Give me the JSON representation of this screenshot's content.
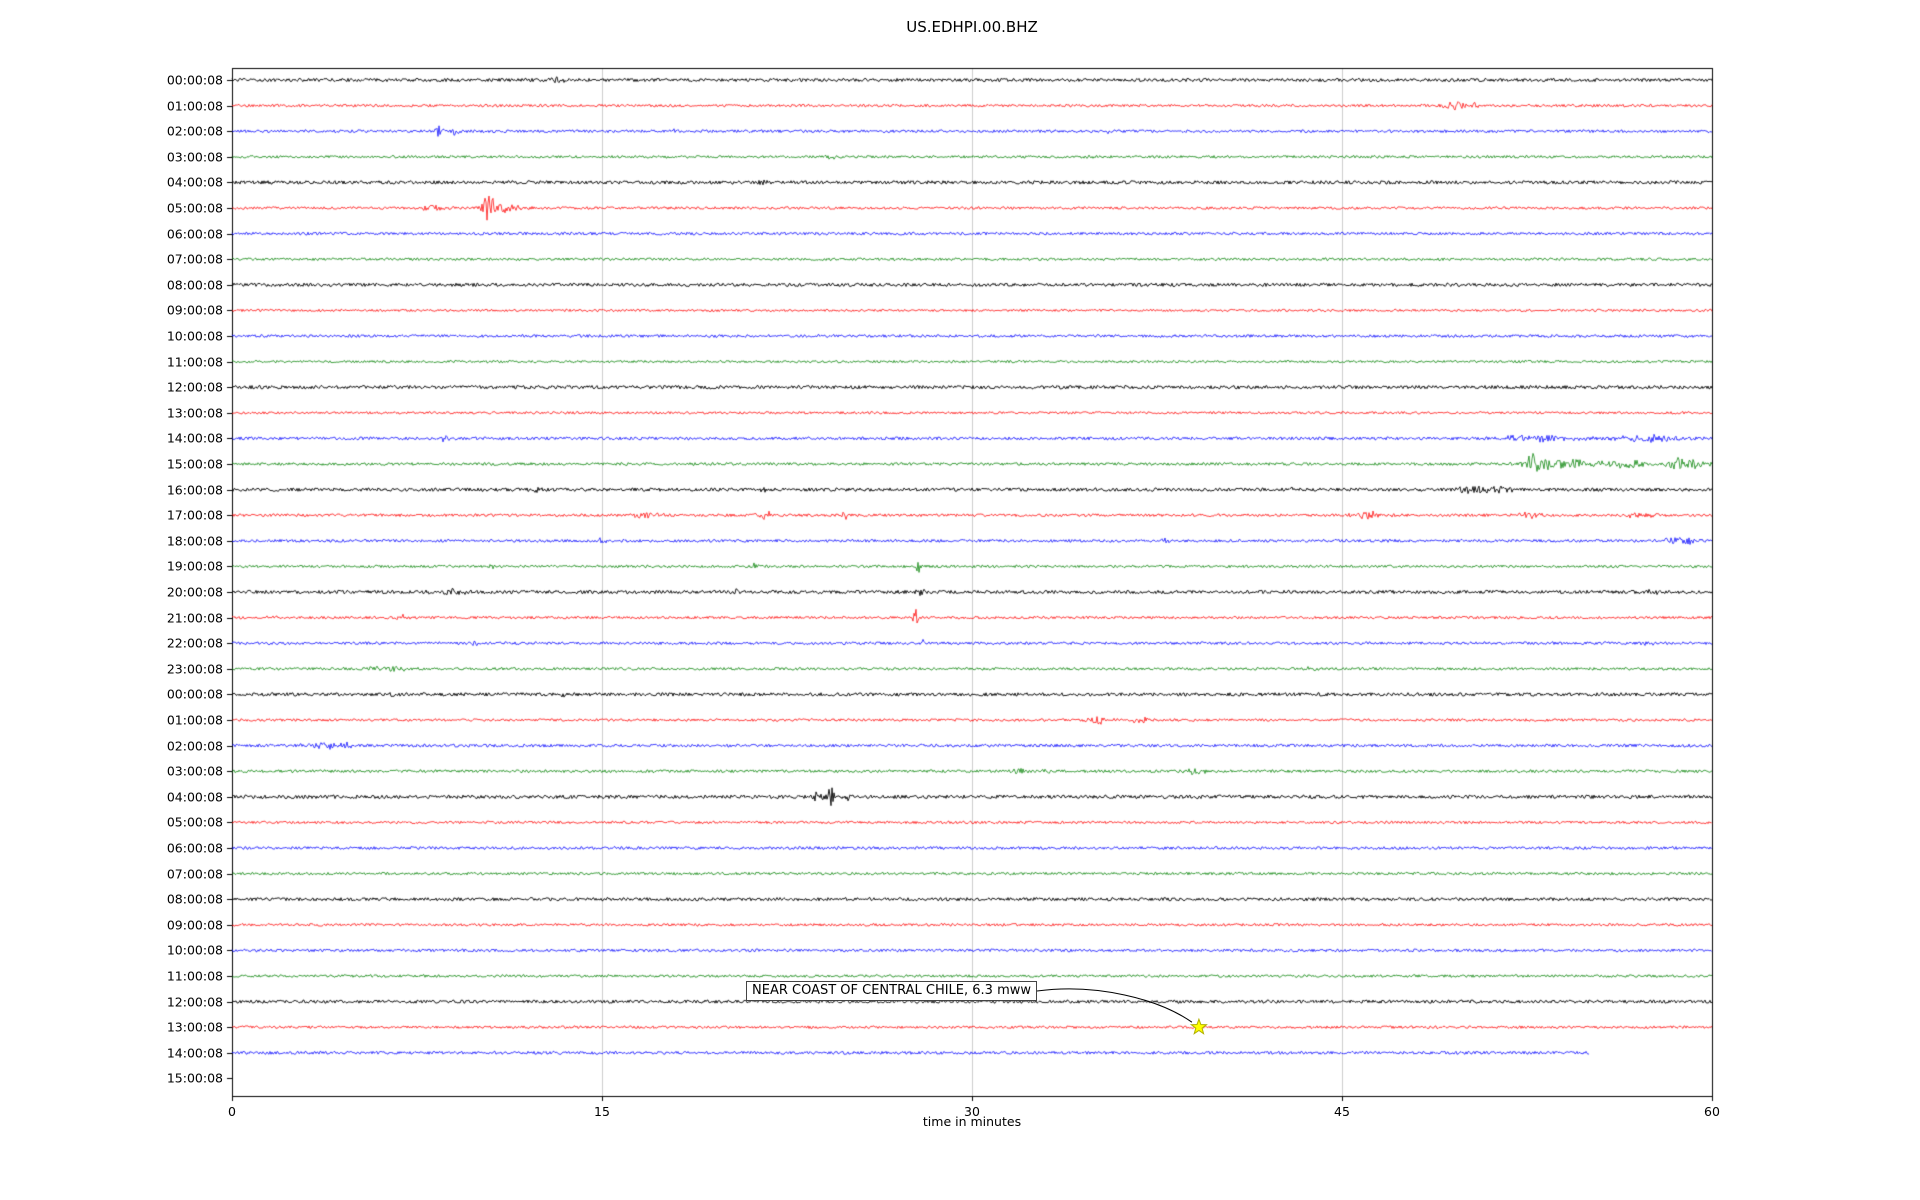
{
  "chart_data": {
    "type": "line",
    "title": "US.EDHPI.00.BHZ",
    "xlabel": "time in minutes",
    "xlim": [
      0,
      60
    ],
    "xticks": [
      0,
      15,
      30,
      45,
      60
    ],
    "grid": {
      "vertical_lines_minutes": [
        15,
        30,
        45
      ],
      "color": "#cccccc"
    },
    "color_cycle": [
      "#000000",
      "#ff0000",
      "#0000ff",
      "#008000"
    ],
    "annotation": {
      "text": "NEAR COAST OF CENTRAL CHILE, 6.3 mww",
      "trace_label": "13:00:08",
      "trace_index": 37,
      "t_minutes": 39.2,
      "marker": "star",
      "marker_color": "#ffff00"
    },
    "traces": [
      {
        "label": "00:00:08",
        "color": "#000000",
        "noise": 1.6,
        "end": 60,
        "events": [
          {
            "t": 13.2,
            "amp": 3,
            "dur": 0.3
          }
        ]
      },
      {
        "label": "01:00:08",
        "color": "#ff0000",
        "noise": 1.3,
        "end": 60,
        "events": [
          {
            "t": 49.6,
            "amp": 4,
            "dur": 0.5
          },
          {
            "t": 50.3,
            "amp": 2.5,
            "dur": 0.3
          }
        ]
      },
      {
        "label": "02:00:08",
        "color": "#0000ff",
        "noise": 1.4,
        "end": 60,
        "events": [
          {
            "t": 8.4,
            "amp": 7,
            "dur": 0.15
          },
          {
            "t": 9.1,
            "amp": 6,
            "dur": 0.15
          },
          {
            "t": 18.0,
            "amp": 5,
            "dur": 0.12
          },
          {
            "t": 35.5,
            "amp": 3,
            "dur": 0.1
          }
        ]
      },
      {
        "label": "03:00:08",
        "color": "#008000",
        "noise": 1.3,
        "end": 60,
        "events": [
          {
            "t": 24.2,
            "amp": 2.5,
            "dur": 0.3
          },
          {
            "t": 34.8,
            "amp": 2,
            "dur": 0.2
          }
        ]
      },
      {
        "label": "04:00:08",
        "color": "#000000",
        "noise": 1.7,
        "end": 60,
        "events": [
          {
            "t": 21.8,
            "amp": 2.5,
            "dur": 0.4
          }
        ]
      },
      {
        "label": "05:00:08",
        "color": "#ff0000",
        "noise": 1.3,
        "end": 60,
        "events": [
          {
            "t": 8.1,
            "amp": 3,
            "dur": 0.4
          },
          {
            "t": 10.4,
            "amp": 13,
            "dur": 0.25
          },
          {
            "t": 11.0,
            "amp": 4,
            "dur": 0.8
          }
        ]
      },
      {
        "label": "06:00:08",
        "color": "#0000ff",
        "noise": 1.4,
        "end": 60,
        "events": []
      },
      {
        "label": "07:00:08",
        "color": "#008000",
        "noise": 1.3,
        "end": 60,
        "events": [
          {
            "t": 24.0,
            "amp": 1.5,
            "dur": 0.3
          }
        ]
      },
      {
        "label": "08:00:08",
        "color": "#000000",
        "noise": 1.7,
        "end": 60,
        "events": []
      },
      {
        "label": "09:00:08",
        "color": "#ff0000",
        "noise": 1.2,
        "end": 60,
        "events": []
      },
      {
        "label": "10:00:08",
        "color": "#0000ff",
        "noise": 1.4,
        "end": 60,
        "events": []
      },
      {
        "label": "11:00:08",
        "color": "#008000",
        "noise": 1.2,
        "end": 60,
        "events": []
      },
      {
        "label": "12:00:08",
        "color": "#000000",
        "noise": 1.7,
        "end": 60,
        "events": []
      },
      {
        "label": "13:00:08",
        "color": "#ff0000",
        "noise": 1.2,
        "end": 60,
        "events": []
      },
      {
        "label": "14:00:08",
        "color": "#0000ff",
        "noise": 1.5,
        "end": 60,
        "events": [
          {
            "t": 8.6,
            "amp": 3,
            "dur": 0.3
          },
          {
            "t": 53.0,
            "amp": 2.5,
            "dur": 2
          },
          {
            "t": 57.5,
            "amp": 3,
            "dur": 1.5
          }
        ]
      },
      {
        "label": "15:00:08",
        "color": "#008000",
        "noise": 1.4,
        "end": 60,
        "events": [
          {
            "t": 52.8,
            "amp": 9,
            "dur": 0.5
          },
          {
            "t": 54.0,
            "amp": 5,
            "dur": 1.5
          },
          {
            "t": 56.5,
            "amp": 4,
            "dur": 1
          },
          {
            "t": 58.7,
            "amp": 6,
            "dur": 0.6
          },
          {
            "t": 59.5,
            "amp": 4,
            "dur": 0.5
          }
        ]
      },
      {
        "label": "16:00:08",
        "color": "#000000",
        "noise": 1.7,
        "end": 60,
        "events": [
          {
            "t": 12.2,
            "amp": 2,
            "dur": 0.3
          },
          {
            "t": 21.5,
            "amp": 2,
            "dur": 0.3
          },
          {
            "t": 43.0,
            "amp": 2,
            "dur": 0.2
          },
          {
            "t": 50.5,
            "amp": 4,
            "dur": 0.8
          },
          {
            "t": 51.5,
            "amp": 3,
            "dur": 0.5
          }
        ]
      },
      {
        "label": "17:00:08",
        "color": "#ff0000",
        "noise": 1.4,
        "end": 60,
        "events": [
          {
            "t": 16.8,
            "amp": 3.5,
            "dur": 0.6
          },
          {
            "t": 21.6,
            "amp": 4,
            "dur": 0.3
          },
          {
            "t": 24.9,
            "amp": 4,
            "dur": 0.2
          },
          {
            "t": 46.2,
            "amp": 3.5,
            "dur": 0.8
          },
          {
            "t": 52.6,
            "amp": 3,
            "dur": 0.5
          },
          {
            "t": 57.2,
            "amp": 3.5,
            "dur": 0.6
          }
        ]
      },
      {
        "label": "18:00:08",
        "color": "#0000ff",
        "noise": 1.4,
        "end": 60,
        "events": [
          {
            "t": 15.0,
            "amp": 2.5,
            "dur": 0.3
          },
          {
            "t": 37.8,
            "amp": 2.5,
            "dur": 0.2
          },
          {
            "t": 47.0,
            "amp": 2,
            "dur": 0.3
          },
          {
            "t": 58.8,
            "amp": 3.5,
            "dur": 0.8
          }
        ]
      },
      {
        "label": "19:00:08",
        "color": "#008000",
        "noise": 1.3,
        "end": 60,
        "events": [
          {
            "t": 10.5,
            "amp": 2,
            "dur": 0.2
          },
          {
            "t": 21.2,
            "amp": 5,
            "dur": 0.12
          },
          {
            "t": 27.8,
            "amp": 8,
            "dur": 0.12
          }
        ]
      },
      {
        "label": "20:00:08",
        "color": "#000000",
        "noise": 1.7,
        "end": 60,
        "events": [
          {
            "t": 9.0,
            "amp": 3.5,
            "dur": 0.8
          },
          {
            "t": 20.5,
            "amp": 3,
            "dur": 0.3
          },
          {
            "t": 27.9,
            "amp": 3,
            "dur": 0.2
          },
          {
            "t": 57.6,
            "amp": 2.5,
            "dur": 0.3
          }
        ]
      },
      {
        "label": "21:00:08",
        "color": "#ff0000",
        "noise": 1.3,
        "end": 60,
        "events": [
          {
            "t": 1.6,
            "amp": 2.5,
            "dur": 0.3
          },
          {
            "t": 6.9,
            "amp": 2.5,
            "dur": 0.3
          },
          {
            "t": 27.7,
            "amp": 9,
            "dur": 0.1
          },
          {
            "t": 47.9,
            "amp": 2.5,
            "dur": 0.2
          }
        ]
      },
      {
        "label": "22:00:08",
        "color": "#0000ff",
        "noise": 1.4,
        "end": 60,
        "events": [
          {
            "t": 9.9,
            "amp": 2.5,
            "dur": 0.3
          },
          {
            "t": 28.0,
            "amp": 3,
            "dur": 0.15
          },
          {
            "t": 57.4,
            "amp": 2.5,
            "dur": 0.3
          }
        ]
      },
      {
        "label": "23:00:08",
        "color": "#008000",
        "noise": 1.3,
        "end": 60,
        "events": [
          {
            "t": 6.4,
            "amp": 3,
            "dur": 0.8
          },
          {
            "t": 43.6,
            "amp": 1.5,
            "dur": 0.3
          }
        ]
      },
      {
        "label": "00:00:08",
        "color": "#000000",
        "noise": 1.7,
        "end": 60,
        "events": [
          {
            "t": 6.6,
            "amp": 2,
            "dur": 0.3
          },
          {
            "t": 13.6,
            "amp": 2,
            "dur": 0.3
          }
        ]
      },
      {
        "label": "01:00:08",
        "color": "#ff0000",
        "noise": 1.3,
        "end": 60,
        "events": [
          {
            "t": 35.0,
            "amp": 4.5,
            "dur": 0.6
          },
          {
            "t": 36.8,
            "amp": 4,
            "dur": 0.3
          }
        ]
      },
      {
        "label": "02:00:08",
        "color": "#0000ff",
        "noise": 1.5,
        "end": 60,
        "events": [
          {
            "t": 3.6,
            "amp": 3.5,
            "dur": 0.8
          },
          {
            "t": 4.5,
            "amp": 2.5,
            "dur": 0.4
          }
        ]
      },
      {
        "label": "03:00:08",
        "color": "#008000",
        "noise": 1.4,
        "end": 60,
        "events": [
          {
            "t": 31.9,
            "amp": 3,
            "dur": 0.5
          },
          {
            "t": 33.0,
            "amp": 2,
            "dur": 0.3
          },
          {
            "t": 39.0,
            "amp": 3.5,
            "dur": 0.4
          }
        ]
      },
      {
        "label": "04:00:08",
        "color": "#000000",
        "noise": 1.8,
        "end": 60,
        "events": [
          {
            "t": 23.7,
            "amp": 4,
            "dur": 0.5
          },
          {
            "t": 24.3,
            "amp": 15,
            "dur": 0.12
          },
          {
            "t": 24.8,
            "amp": 4,
            "dur": 0.4
          }
        ]
      },
      {
        "label": "05:00:08",
        "color": "#ff0000",
        "noise": 1.3,
        "end": 60,
        "events": [
          {
            "t": 24.2,
            "amp": 2,
            "dur": 0.2
          }
        ]
      },
      {
        "label": "06:00:08",
        "color": "#0000ff",
        "noise": 1.4,
        "end": 60,
        "events": []
      },
      {
        "label": "07:00:08",
        "color": "#008000",
        "noise": 1.3,
        "end": 60,
        "events": []
      },
      {
        "label": "08:00:08",
        "color": "#000000",
        "noise": 1.6,
        "end": 60,
        "events": []
      },
      {
        "label": "09:00:08",
        "color": "#ff0000",
        "noise": 1.3,
        "end": 60,
        "events": []
      },
      {
        "label": "10:00:08",
        "color": "#0000ff",
        "noise": 1.4,
        "end": 60,
        "events": []
      },
      {
        "label": "11:00:08",
        "color": "#008000",
        "noise": 1.3,
        "end": 60,
        "events": []
      },
      {
        "label": "12:00:08",
        "color": "#000000",
        "noise": 1.6,
        "end": 60,
        "events": []
      },
      {
        "label": "13:00:08",
        "color": "#ff0000",
        "noise": 1.3,
        "end": 60,
        "events": []
      },
      {
        "label": "14:00:08",
        "color": "#0000ff",
        "noise": 1.5,
        "end": 55,
        "events": []
      },
      {
        "label": "15:00:08",
        "color": "#000000",
        "noise": 0,
        "end": 0,
        "events": []
      }
    ]
  }
}
